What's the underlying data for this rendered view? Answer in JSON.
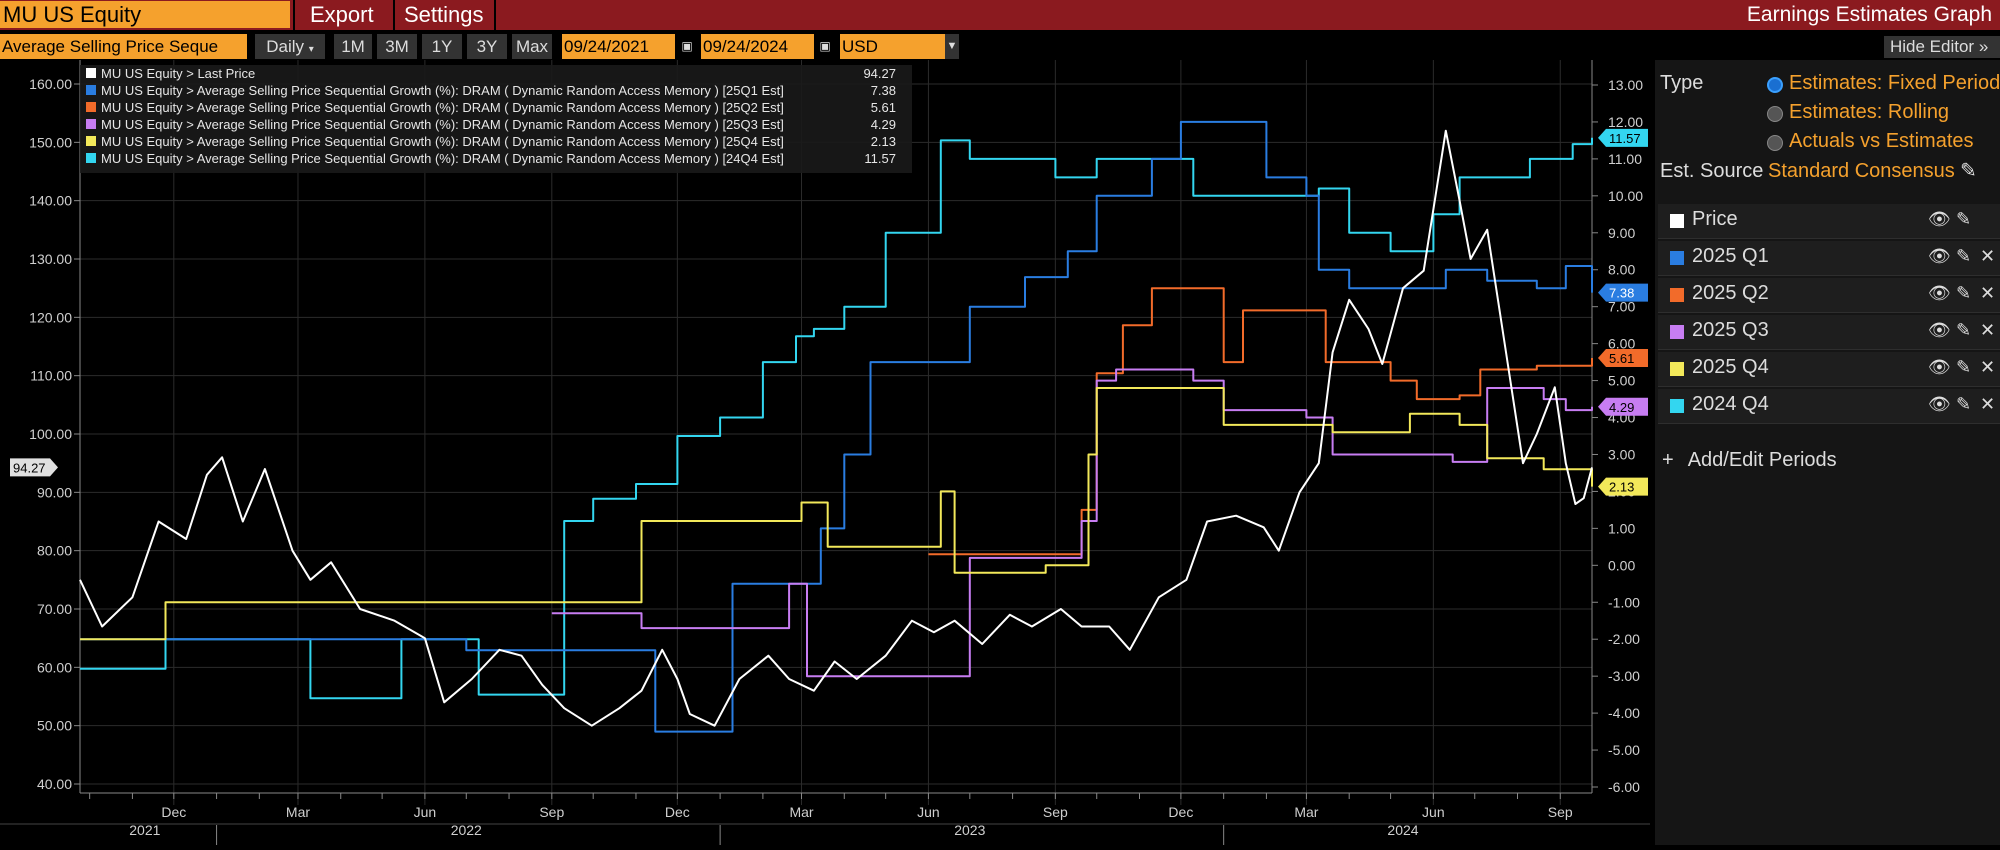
{
  "header": {
    "ticker": "MU US Equity",
    "export_label": "Export",
    "settings_label": "Settings",
    "title": "Earnings Estimates Graph"
  },
  "toolbar": {
    "metric": "Average Selling Price Seque",
    "frequency": "Daily",
    "ranges": [
      "1M",
      "3M",
      "1Y",
      "3Y",
      "Max"
    ],
    "start_date": "09/24/2021",
    "end_date": "09/24/2024",
    "currency": "USD",
    "hide_editor": "Hide Editor"
  },
  "legend": [
    {
      "label": "MU US Equity > Last Price",
      "value": "94.27",
      "color": "#ffffff"
    },
    {
      "label": "MU US Equity > Average Selling Price Sequential Growth (%): DRAM ( Dynamic Random Access Memory ) [25Q1 Est]",
      "value": "7.38",
      "color": "#2a7de1"
    },
    {
      "label": "MU US Equity > Average Selling Price Sequential Growth (%): DRAM ( Dynamic Random Access Memory ) [25Q2 Est]",
      "value": "5.61",
      "color": "#f26b2a"
    },
    {
      "label": "MU US Equity > Average Selling Price Sequential Growth (%): DRAM ( Dynamic Random Access Memory ) [25Q3 Est]",
      "value": "4.29",
      "color": "#c77df2"
    },
    {
      "label": "MU US Equity > Average Selling Price Sequential Growth (%): DRAM ( Dynamic Random Access Memory ) [25Q4 Est]",
      "value": "2.13",
      "color": "#f2e85a"
    },
    {
      "label": "MU US Equity > Average Selling Price Sequential Growth (%): DRAM ( Dynamic Random Access Memory ) [24Q4 Est]",
      "value": "11.57",
      "color": "#33d6f0"
    }
  ],
  "editor": {
    "type_label": "Type",
    "type_options": [
      "Estimates: Fixed Period",
      "Estimates: Rolling",
      "Actuals vs Estimates"
    ],
    "selected_type": "Estimates: Fixed Period",
    "source_label": "Est. Source",
    "source_value": "Standard Consensus",
    "periods": [
      {
        "label": "Price",
        "color": "#ffffff",
        "removable": false
      },
      {
        "label": "2025 Q1",
        "color": "#2a7de1",
        "removable": true
      },
      {
        "label": "2025 Q2",
        "color": "#f26b2a",
        "removable": true
      },
      {
        "label": "2025 Q3",
        "color": "#c77df2",
        "removable": true
      },
      {
        "label": "2025 Q4",
        "color": "#f2e85a",
        "removable": true
      },
      {
        "label": "2024 Q4",
        "color": "#33d6f0",
        "removable": true
      }
    ],
    "add_edit": "Add/Edit Periods"
  },
  "chart_data": {
    "type": "line",
    "x_range": [
      "2021-09-24",
      "2024-09-24"
    ],
    "left_axis": {
      "ticks": [
        "160.00",
        "150.00",
        "140.00",
        "130.00",
        "120.00",
        "110.00",
        "100.00",
        "90.00",
        "80.00",
        "70.00",
        "60.00",
        "50.00",
        "40.00"
      ],
      "ylim": [
        40,
        160
      ]
    },
    "right_axis": {
      "ticks": [
        "13.00",
        "12.00",
        "11.00",
        "10.00",
        "9.00",
        "8.00",
        "7.00",
        "6.00",
        "5.00",
        "4.00",
        "3.00",
        "2.00",
        "1.00",
        "0.00",
        "-1.00",
        "-2.00",
        "-3.00",
        "-4.00",
        "-5.00",
        "-6.00"
      ],
      "ylim": [
        -6,
        13
      ]
    },
    "month_labels": [
      "Dec",
      "Mar",
      "Jun",
      "Sep",
      "Dec",
      "Mar",
      "Jun",
      "Sep",
      "Dec",
      "Mar",
      "Jun",
      "Sep"
    ],
    "year_labels": [
      "2021",
      "2022",
      "2023",
      "2024"
    ],
    "last_price_tag": "94.27",
    "right_tags": [
      "11.57",
      "7.38",
      "5.61",
      "4.29",
      "2.13"
    ],
    "series": [
      {
        "name": "Last Price",
        "axis": "left",
        "color": "#ffffff",
        "points": [
          [
            "2021-09-24",
            75.0
          ],
          [
            "2021-10-10",
            67.0
          ],
          [
            "2021-11-01",
            72.0
          ],
          [
            "2021-11-20",
            85.0
          ],
          [
            "2021-12-10",
            82.0
          ],
          [
            "2021-12-25",
            93.0
          ],
          [
            "2022-01-05",
            96.0
          ],
          [
            "2022-01-20",
            85.0
          ],
          [
            "2022-02-05",
            94.0
          ],
          [
            "2022-02-25",
            80.0
          ],
          [
            "2022-03-10",
            75.0
          ],
          [
            "2022-03-25",
            78.0
          ],
          [
            "2022-04-15",
            70.0
          ],
          [
            "2022-05-10",
            68.0
          ],
          [
            "2022-06-01",
            65.0
          ],
          [
            "2022-06-15",
            54.0
          ],
          [
            "2022-07-05",
            58.0
          ],
          [
            "2022-07-25",
            63.0
          ],
          [
            "2022-08-10",
            62.0
          ],
          [
            "2022-08-25",
            57.0
          ],
          [
            "2022-09-10",
            53.0
          ],
          [
            "2022-09-30",
            50.0
          ],
          [
            "2022-10-20",
            53.0
          ],
          [
            "2022-11-05",
            56.0
          ],
          [
            "2022-11-20",
            63.0
          ],
          [
            "2022-12-01",
            58.0
          ],
          [
            "2022-12-10",
            52.0
          ],
          [
            "2022-12-28",
            50.0
          ],
          [
            "2023-01-15",
            58.0
          ],
          [
            "2023-02-05",
            62.0
          ],
          [
            "2023-02-20",
            58.0
          ],
          [
            "2023-03-10",
            56.0
          ],
          [
            "2023-03-25",
            61.0
          ],
          [
            "2023-04-10",
            58.0
          ],
          [
            "2023-05-01",
            62.0
          ],
          [
            "2023-05-20",
            68.0
          ],
          [
            "2023-06-05",
            66.0
          ],
          [
            "2023-06-20",
            68.0
          ],
          [
            "2023-07-10",
            64.0
          ],
          [
            "2023-07-30",
            69.0
          ],
          [
            "2023-08-15",
            67.0
          ],
          [
            "2023-09-05",
            70.0
          ],
          [
            "2023-09-20",
            67.0
          ],
          [
            "2023-10-10",
            67.0
          ],
          [
            "2023-10-25",
            63.0
          ],
          [
            "2023-11-15",
            72.0
          ],
          [
            "2023-12-05",
            75.0
          ],
          [
            "2023-12-20",
            85.0
          ],
          [
            "2024-01-10",
            86.0
          ],
          [
            "2024-01-30",
            84.0
          ],
          [
            "2024-02-10",
            80.0
          ],
          [
            "2024-02-25",
            90.0
          ],
          [
            "2024-03-10",
            95.0
          ],
          [
            "2024-03-20",
            114.0
          ],
          [
            "2024-04-01",
            123.0
          ],
          [
            "2024-04-15",
            118.0
          ],
          [
            "2024-04-25",
            112.0
          ],
          [
            "2024-05-10",
            125.0
          ],
          [
            "2024-05-25",
            128.0
          ],
          [
            "2024-06-10",
            152.0
          ],
          [
            "2024-06-20",
            140.0
          ],
          [
            "2024-06-28",
            130.0
          ],
          [
            "2024-07-10",
            135.0
          ],
          [
            "2024-07-25",
            112.0
          ],
          [
            "2024-08-05",
            95.0
          ],
          [
            "2024-08-15",
            100.0
          ],
          [
            "2024-08-28",
            108.0
          ],
          [
            "2024-09-05",
            95.0
          ],
          [
            "2024-09-12",
            88.0
          ],
          [
            "2024-09-18",
            89.0
          ],
          [
            "2024-09-24",
            94.27
          ]
        ]
      },
      {
        "name": "25Q1 Est",
        "axis": "right",
        "color": "#2a7de1",
        "points": [
          [
            "2021-09-24",
            -2.0
          ],
          [
            "2022-06-10",
            -2.0
          ],
          [
            "2022-07-01",
            -2.3
          ],
          [
            "2022-11-01",
            -2.3
          ],
          [
            "2022-11-15",
            -4.5
          ],
          [
            "2022-12-20",
            -4.5
          ],
          [
            "2023-01-10",
            -0.5
          ],
          [
            "2023-03-01",
            -0.5
          ],
          [
            "2023-03-15",
            1.0
          ],
          [
            "2023-04-01",
            3.0
          ],
          [
            "2023-04-20",
            5.5
          ],
          [
            "2023-06-20",
            5.5
          ],
          [
            "2023-07-01",
            7.0
          ],
          [
            "2023-08-10",
            7.8
          ],
          [
            "2023-09-10",
            8.5
          ],
          [
            "2023-10-01",
            10.0
          ],
          [
            "2023-11-01",
            10.0
          ],
          [
            "2023-11-10",
            11.0
          ],
          [
            "2023-12-01",
            12.0
          ],
          [
            "2024-01-15",
            12.0
          ],
          [
            "2024-02-01",
            10.5
          ],
          [
            "2024-03-01",
            10.0
          ],
          [
            "2024-03-10",
            8.0
          ],
          [
            "2024-04-01",
            7.5
          ],
          [
            "2024-05-15",
            7.5
          ],
          [
            "2024-06-10",
            8.0
          ],
          [
            "2024-07-10",
            7.7
          ],
          [
            "2024-08-15",
            7.5
          ],
          [
            "2024-09-05",
            8.1
          ],
          [
            "2024-09-24",
            7.38
          ]
        ]
      },
      {
        "name": "25Q2 Est",
        "axis": "right",
        "color": "#f26b2a",
        "points": [
          [
            "2023-06-01",
            0.3
          ],
          [
            "2023-09-01",
            0.3
          ],
          [
            "2023-09-20",
            1.5
          ],
          [
            "2023-10-01",
            5.2
          ],
          [
            "2023-10-20",
            6.5
          ],
          [
            "2023-11-10",
            7.5
          ],
          [
            "2023-12-10",
            7.5
          ],
          [
            "2024-01-01",
            5.5
          ],
          [
            "2024-01-15",
            6.9
          ],
          [
            "2024-03-01",
            6.9
          ],
          [
            "2024-03-15",
            5.5
          ],
          [
            "2024-05-01",
            5.0
          ],
          [
            "2024-05-20",
            4.5
          ],
          [
            "2024-06-20",
            4.6
          ],
          [
            "2024-07-05",
            5.3
          ],
          [
            "2024-08-15",
            5.4
          ],
          [
            "2024-09-24",
            5.61
          ]
        ]
      },
      {
        "name": "25Q3 Est",
        "axis": "right",
        "color": "#c77df2",
        "points": [
          [
            "2022-09-01",
            -1.3
          ],
          [
            "2022-10-25",
            -1.3
          ],
          [
            "2022-11-05",
            -1.7
          ],
          [
            "2023-02-10",
            -1.7
          ],
          [
            "2023-02-20",
            -0.5
          ],
          [
            "2023-03-05",
            -3.0
          ],
          [
            "2023-06-20",
            -3.0
          ],
          [
            "2023-07-01",
            0.2
          ],
          [
            "2023-09-10",
            0.2
          ],
          [
            "2023-09-20",
            1.2
          ],
          [
            "2023-10-01",
            5.0
          ],
          [
            "2023-10-15",
            5.3
          ],
          [
            "2023-12-10",
            5.0
          ],
          [
            "2024-01-01",
            4.2
          ],
          [
            "2024-03-01",
            4.0
          ],
          [
            "2024-03-20",
            3.0
          ],
          [
            "2024-06-15",
            2.8
          ],
          [
            "2024-07-10",
            4.8
          ],
          [
            "2024-08-20",
            4.5
          ],
          [
            "2024-09-05",
            4.2
          ],
          [
            "2024-09-24",
            4.29
          ]
        ]
      },
      {
        "name": "25Q4 Est",
        "axis": "right",
        "color": "#f2e85a",
        "points": [
          [
            "2021-09-24",
            -2.0
          ],
          [
            "2021-11-25",
            -1.0
          ],
          [
            "2022-10-25",
            -1.0
          ],
          [
            "2022-11-05",
            1.2
          ],
          [
            "2023-02-15",
            1.2
          ],
          [
            "2023-03-01",
            1.7
          ],
          [
            "2023-03-20",
            0.5
          ],
          [
            "2023-06-01",
            0.5
          ],
          [
            "2023-06-10",
            2.0
          ],
          [
            "2023-06-20",
            -0.2
          ],
          [
            "2023-08-25",
            0.0
          ],
          [
            "2023-09-25",
            3.0
          ],
          [
            "2023-10-01",
            4.8
          ],
          [
            "2023-12-10",
            4.8
          ],
          [
            "2024-01-01",
            3.8
          ],
          [
            "2024-03-01",
            3.8
          ],
          [
            "2024-03-20",
            3.6
          ],
          [
            "2024-05-15",
            4.1
          ],
          [
            "2024-06-20",
            3.8
          ],
          [
            "2024-07-10",
            2.9
          ],
          [
            "2024-08-20",
            2.6
          ],
          [
            "2024-09-24",
            2.13
          ]
        ]
      },
      {
        "name": "24Q4 Est",
        "axis": "right",
        "color": "#33d6f0",
        "points": [
          [
            "2021-09-24",
            -2.8
          ],
          [
            "2021-11-25",
            -2.0
          ],
          [
            "2022-02-25",
            -2.0
          ],
          [
            "2022-03-10",
            -3.6
          ],
          [
            "2022-05-01",
            -3.6
          ],
          [
            "2022-05-15",
            -2.0
          ],
          [
            "2022-07-01",
            -2.0
          ],
          [
            "2022-07-10",
            -3.5
          ],
          [
            "2022-08-25",
            -3.5
          ],
          [
            "2022-09-10",
            1.2
          ],
          [
            "2022-10-01",
            1.8
          ],
          [
            "2022-11-01",
            2.2
          ],
          [
            "2022-12-01",
            3.5
          ],
          [
            "2023-01-01",
            4.0
          ],
          [
            "2023-02-01",
            5.5
          ],
          [
            "2023-02-25",
            6.2
          ],
          [
            "2023-03-10",
            6.4
          ],
          [
            "2023-04-01",
            7.0
          ],
          [
            "2023-05-01",
            9.0
          ],
          [
            "2023-06-10",
            11.5
          ],
          [
            "2023-07-01",
            11.0
          ],
          [
            "2023-09-01",
            10.5
          ],
          [
            "2023-10-01",
            11.0
          ],
          [
            "2023-11-10",
            11.0
          ],
          [
            "2023-12-10",
            10.0
          ],
          [
            "2024-01-20",
            10.0
          ],
          [
            "2024-03-10",
            10.2
          ],
          [
            "2024-04-01",
            9.0
          ],
          [
            "2024-05-01",
            8.5
          ],
          [
            "2024-06-01",
            9.5
          ],
          [
            "2024-06-20",
            10.5
          ],
          [
            "2024-07-20",
            10.5
          ],
          [
            "2024-08-10",
            11.0
          ],
          [
            "2024-09-10",
            11.4
          ],
          [
            "2024-09-24",
            11.57
          ]
        ]
      }
    ]
  }
}
